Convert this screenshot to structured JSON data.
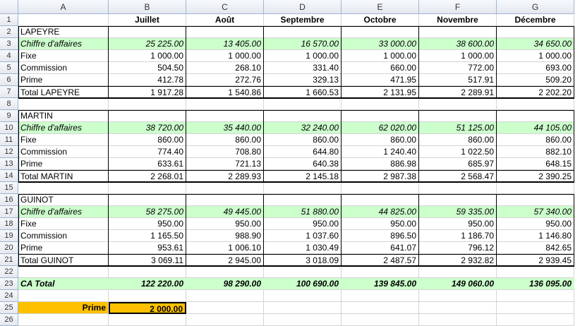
{
  "columns": [
    "A",
    "B",
    "C",
    "D",
    "E",
    "F",
    "G"
  ],
  "header_row": [
    "",
    "Juillet",
    "Août",
    "Septembre",
    "Octobre",
    "Novembre",
    "Décembre"
  ],
  "rows": [
    {
      "n": "2",
      "cells": [
        "LAPEYRE",
        "",
        "",
        "",
        "",
        "",
        ""
      ],
      "style": "name"
    },
    {
      "n": "3",
      "cells": [
        "Chiffre d'affaires",
        "25 225.00",
        "13 405.00",
        "16 570.00",
        "33 000.00",
        "38 600.00",
        "34 650.00"
      ],
      "style": "ca"
    },
    {
      "n": "4",
      "cells": [
        "Fixe",
        "1 000.00",
        "1 000.00",
        "1 000.00",
        "1 000.00",
        "1 000.00",
        "1 000.00"
      ],
      "style": "plain"
    },
    {
      "n": "5",
      "cells": [
        "Commission",
        "504.50",
        "268.10",
        "331.40",
        "660.00",
        "772.00",
        "693.00"
      ],
      "style": "plain"
    },
    {
      "n": "6",
      "cells": [
        "Prime",
        "412.78",
        "272.76",
        "329.13",
        "471.95",
        "517.91",
        "509.20"
      ],
      "style": "plain"
    },
    {
      "n": "7",
      "cells": [
        "Total LAPEYRE",
        "1 917.28",
        "1 540.86",
        "1 660.53",
        "2 131.95",
        "2 289.91",
        "2 202.20"
      ],
      "style": "total"
    },
    {
      "n": "8",
      "cells": [
        "",
        "",
        "",
        "",
        "",
        "",
        ""
      ],
      "style": "blank"
    },
    {
      "n": "9",
      "cells": [
        "MARTIN",
        "",
        "",
        "",
        "",
        "",
        ""
      ],
      "style": "name"
    },
    {
      "n": "10",
      "cells": [
        "Chiffre d'affaires",
        "38 720.00",
        "35 440.00",
        "32 240.00",
        "62 020.00",
        "51 125.00",
        "44 105.00"
      ],
      "style": "ca"
    },
    {
      "n": "11",
      "cells": [
        "Fixe",
        "860.00",
        "860.00",
        "860.00",
        "860.00",
        "860.00",
        "860.00"
      ],
      "style": "plain"
    },
    {
      "n": "12",
      "cells": [
        "Commission",
        "774.40",
        "708.80",
        "644.80",
        "1 240.40",
        "1 022.50",
        "882.10"
      ],
      "style": "plain"
    },
    {
      "n": "13",
      "cells": [
        "Prime",
        "633.61",
        "721.13",
        "640.38",
        "886.98",
        "685.97",
        "648.15"
      ],
      "style": "plain"
    },
    {
      "n": "14",
      "cells": [
        "Total MARTIN",
        "2 268.01",
        "2 289.93",
        "2 145.18",
        "2 987.38",
        "2 568.47",
        "2 390.25"
      ],
      "style": "total"
    },
    {
      "n": "15",
      "cells": [
        "",
        "",
        "",
        "",
        "",
        "",
        ""
      ],
      "style": "blank"
    },
    {
      "n": "16",
      "cells": [
        "GUINOT",
        "",
        "",
        "",
        "",
        "",
        ""
      ],
      "style": "name"
    },
    {
      "n": "17",
      "cells": [
        "Chiffre d'affaires",
        "58 275.00",
        "49 445.00",
        "51 880.00",
        "44 825.00",
        "59 335.00",
        "57 340.00"
      ],
      "style": "ca"
    },
    {
      "n": "18",
      "cells": [
        "Fixe",
        "950.00",
        "950.00",
        "950.00",
        "950.00",
        "950.00",
        "950.00"
      ],
      "style": "plain"
    },
    {
      "n": "19",
      "cells": [
        "Commission",
        "1 165.50",
        "988.90",
        "1 037.60",
        "896.50",
        "1 186.70",
        "1 146.80"
      ],
      "style": "plain"
    },
    {
      "n": "20",
      "cells": [
        "Prime",
        "953.61",
        "1 006.10",
        "1 030.49",
        "641.07",
        "796.12",
        "842.65"
      ],
      "style": "plain"
    },
    {
      "n": "21",
      "cells": [
        "Total GUINOT",
        "3 069.11",
        "2 945.00",
        "3 018.09",
        "2 487.57",
        "2 932.82",
        "2 939.45"
      ],
      "style": "total"
    },
    {
      "n": "22",
      "cells": [
        "",
        "",
        "",
        "",
        "",
        "",
        ""
      ],
      "style": "blank"
    },
    {
      "n": "23",
      "cells": [
        "CA Total",
        "122 220.00",
        "98 290.00",
        "100 690.00",
        "139 845.00",
        "149 060.00",
        "136 095.00"
      ],
      "style": "catotal"
    },
    {
      "n": "24",
      "cells": [
        "",
        "",
        "",
        "",
        "",
        "",
        ""
      ],
      "style": "blank"
    },
    {
      "n": "25",
      "cells": [
        "Prime",
        "2 000.00",
        "",
        "",
        "",
        "",
        ""
      ],
      "style": "prime"
    },
    {
      "n": "26",
      "cells": [
        "",
        "",
        "",
        "",
        "",
        "",
        ""
      ],
      "style": "blank"
    }
  ],
  "colors": {
    "green": "#ccffcc",
    "orange": "#ffc000"
  }
}
